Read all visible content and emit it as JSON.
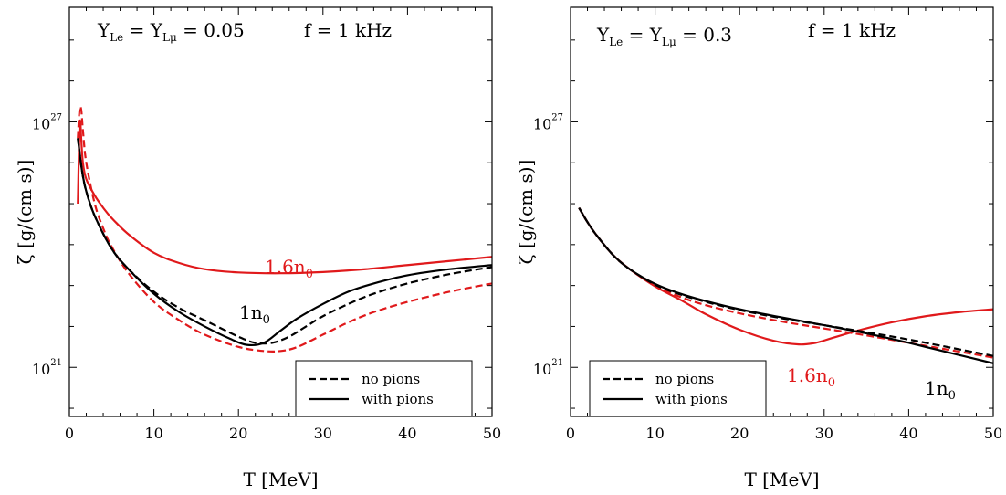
{
  "chart_data": [
    {
      "type": "line",
      "title": "",
      "xlabel": "T [MeV]",
      "ylabel": "ζ [g/(cm s)]",
      "xlim": [
        0,
        50
      ],
      "ylim_log10": [
        19.8,
        29.8
      ],
      "y_scale": "log",
      "x_ticks": [
        "0",
        "10",
        "20",
        "30",
        "40",
        "50"
      ],
      "y_ticks": [
        {
          "mantissa": "10",
          "exponent": "21",
          "log10": 21
        },
        {
          "mantissa": "10",
          "exponent": "27",
          "log10": 27
        }
      ],
      "annotations": {
        "params": {
          "y": "Y",
          "sub_le": "Le",
          "eq": " = ",
          "sub_lmu": "Lμ",
          "value": " = 0.05"
        },
        "freq": "f = 1 kHz",
        "label_16": {
          "text": "1.6n",
          "sub": "0",
          "color": "#e0191b"
        },
        "label_1": {
          "text": "1n",
          "sub": "0",
          "color": "#000000"
        }
      },
      "legend": {
        "position": "lower-right",
        "entries": [
          "no pions",
          "with pions"
        ]
      },
      "series": [
        {
          "density": "1.6n0",
          "pions": "no",
          "color": "#e0191b",
          "dash": true,
          "x": [
            1.0,
            1.2,
            1.4,
            1.6,
            2,
            3,
            4,
            5,
            7,
            10,
            13,
            16,
            20,
            23,
            25,
            27,
            30,
            33,
            36,
            40,
            45,
            50
          ],
          "y": [
            26.6,
            27.3,
            27.3,
            26.8,
            26.0,
            25.0,
            24.4,
            23.95,
            23.3,
            22.6,
            22.15,
            21.8,
            21.5,
            21.4,
            21.4,
            21.5,
            21.8,
            22.1,
            22.35,
            22.6,
            22.85,
            23.05
          ]
        },
        {
          "density": "1.6n0",
          "pions": "yes",
          "color": "#e0191b",
          "dash": false,
          "x": [
            1.0,
            1.1,
            1.2,
            1.3,
            1.4,
            1.6,
            2,
            3,
            4,
            5,
            7,
            10,
            13,
            16,
            20,
            25,
            30,
            35,
            40,
            45,
            50
          ],
          "y": [
            25.0,
            26.0,
            26.9,
            27.0,
            26.6,
            26.0,
            25.6,
            25.2,
            24.9,
            24.65,
            24.25,
            23.8,
            23.55,
            23.4,
            23.32,
            23.3,
            23.33,
            23.4,
            23.5,
            23.6,
            23.7
          ]
        },
        {
          "density": "1n0",
          "pions": "no",
          "color": "#000000",
          "dash": true,
          "x": [
            1.0,
            1.5,
            2,
            3,
            5,
            7,
            10,
            13,
            16,
            20,
            22,
            24,
            26,
            28,
            30,
            33,
            36,
            40,
            45,
            50
          ],
          "y": [
            26.6,
            25.8,
            25.3,
            24.7,
            23.9,
            23.4,
            22.85,
            22.45,
            22.15,
            21.75,
            21.6,
            21.6,
            21.75,
            22.0,
            22.25,
            22.55,
            22.8,
            23.05,
            23.28,
            23.45
          ]
        },
        {
          "density": "1n0",
          "pions": "yes",
          "color": "#000000",
          "dash": false,
          "x": [
            1.0,
            1.5,
            2,
            3,
            5,
            7,
            10,
            13,
            16,
            19,
            21,
            23,
            25,
            27,
            30,
            33,
            36,
            40,
            45,
            50
          ],
          "y": [
            26.6,
            25.8,
            25.3,
            24.7,
            23.9,
            23.4,
            22.8,
            22.35,
            22.0,
            21.7,
            21.55,
            21.6,
            21.9,
            22.2,
            22.55,
            22.85,
            23.05,
            23.25,
            23.4,
            23.5
          ]
        }
      ]
    },
    {
      "type": "line",
      "title": "",
      "xlabel": "T [MeV]",
      "ylabel": "ζ [g/(cm s)]",
      "xlim": [
        0,
        50
      ],
      "ylim_log10": [
        19.8,
        29.8
      ],
      "y_scale": "log",
      "x_ticks": [
        "0",
        "10",
        "20",
        "30",
        "40",
        "50"
      ],
      "y_ticks": [
        {
          "mantissa": "10",
          "exponent": "21",
          "log10": 21
        },
        {
          "mantissa": "10",
          "exponent": "27",
          "log10": 27
        }
      ],
      "annotations": {
        "params": {
          "y": "Y",
          "sub_le": "Le",
          "eq": " = ",
          "sub_lmu": "Lμ",
          "value": " = 0.3"
        },
        "freq": "f = 1 kHz",
        "label_16": {
          "text": "1.6n",
          "sub": "0",
          "color": "#e0191b"
        },
        "label_1": {
          "text": "1n",
          "sub": "0",
          "color": "#000000"
        }
      },
      "legend": {
        "position": "lower-left",
        "entries": [
          "no pions",
          "with pions"
        ]
      },
      "series": [
        {
          "density": "1.6n0",
          "pions": "no",
          "color": "#e0191b",
          "dash": true,
          "x": [
            1,
            2,
            3,
            5,
            7,
            10,
            13,
            16,
            20,
            25,
            30,
            35,
            40,
            45,
            50
          ],
          "y": [
            24.9,
            24.55,
            24.25,
            23.75,
            23.4,
            23.0,
            22.72,
            22.52,
            22.32,
            22.12,
            21.95,
            21.78,
            21.6,
            21.42,
            21.24
          ]
        },
        {
          "density": "1.6n0",
          "pions": "yes",
          "color": "#e0191b",
          "dash": false,
          "x": [
            1,
            2,
            3,
            5,
            7,
            10,
            13,
            16,
            20,
            24,
            27,
            29,
            31,
            34,
            38,
            42,
            46,
            50
          ],
          "y": [
            24.9,
            24.55,
            24.25,
            23.75,
            23.4,
            22.98,
            22.65,
            22.3,
            21.92,
            21.65,
            21.56,
            21.6,
            21.72,
            21.9,
            22.1,
            22.25,
            22.35,
            22.42
          ]
        },
        {
          "density": "1n0",
          "pions": "no",
          "color": "#000000",
          "dash": true,
          "x": [
            1,
            2,
            3,
            5,
            7,
            10,
            13,
            16,
            20,
            25,
            30,
            35,
            40,
            45,
            50
          ],
          "y": [
            24.9,
            24.55,
            24.25,
            23.75,
            23.4,
            23.02,
            22.78,
            22.6,
            22.4,
            22.2,
            22.03,
            21.86,
            21.68,
            21.48,
            21.28
          ]
        },
        {
          "density": "1n0",
          "pions": "yes",
          "color": "#000000",
          "dash": false,
          "x": [
            1,
            2,
            3,
            5,
            7,
            10,
            13,
            16,
            20,
            25,
            30,
            35,
            40,
            45,
            50
          ],
          "y": [
            24.9,
            24.55,
            24.25,
            23.75,
            23.4,
            23.04,
            22.8,
            22.62,
            22.42,
            22.22,
            22.03,
            21.83,
            21.6,
            21.35,
            21.1
          ]
        }
      ]
    }
  ]
}
